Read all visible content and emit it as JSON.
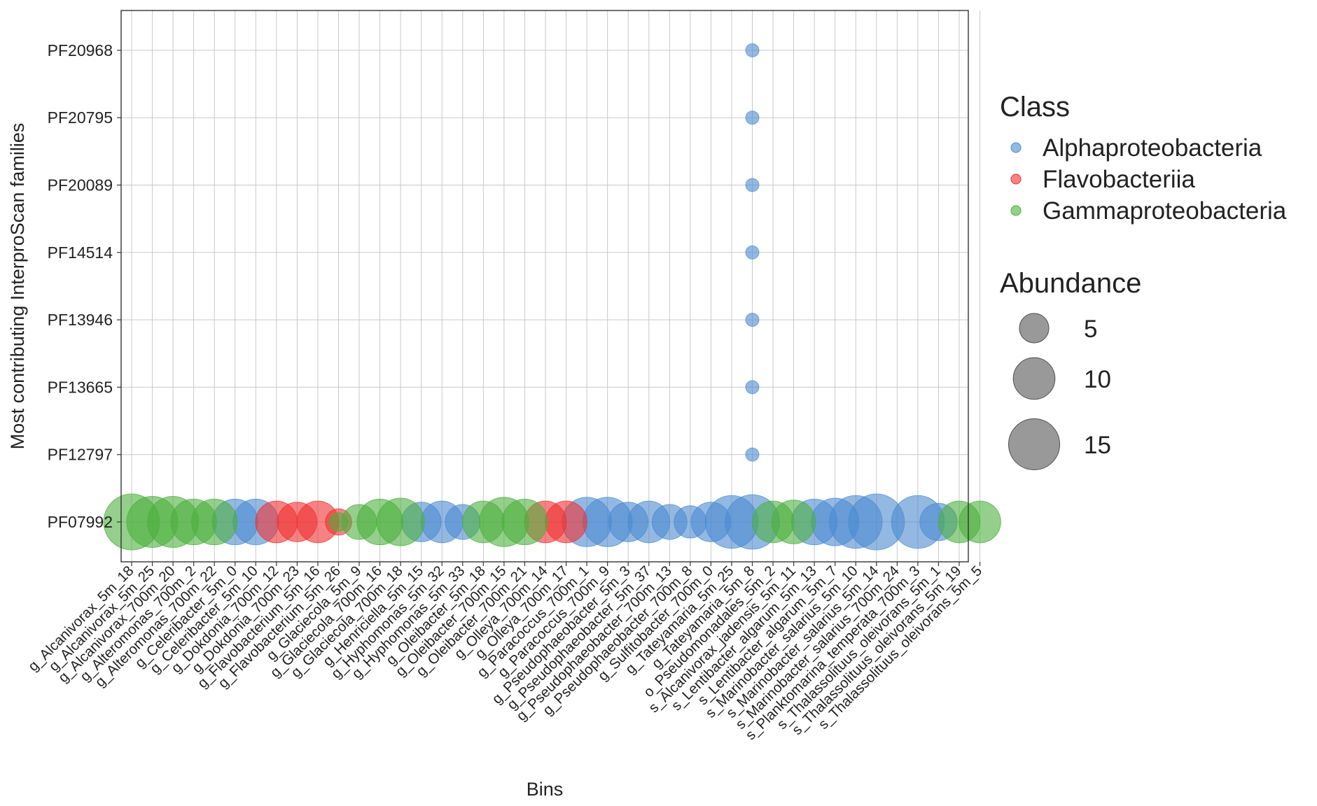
{
  "chart_data": {
    "type": "scatter",
    "subtype": "bubble",
    "title": "",
    "xlabel": "Bins",
    "ylabel": "Most contributing InterproScan families",
    "x_categories": [
      "g_Alcanivorax_5m_18",
      "g_Alcanivorax_5m_25",
      "g_Alcanivorax_700m_20",
      "g_Alteromonas_700m_2",
      "g_Alteromonas_700m_22",
      "g_Celeribacter_5m_0",
      "g_Celeribacter_5m_10",
      "g_Dokdonia_700m_12",
      "g_Dokdonia_700m_23",
      "g_Flavobacterium_5m_16",
      "g_Flavobacterium_5m_26",
      "g_Glaciecola_5m_9",
      "g_Glaciecola_700m_16",
      "g_Glaciecola_700m_18",
      "g_Henriciella_5m_15",
      "g_Hyphomonas_5m_32",
      "g_Hyphomonas_5m_33",
      "g_Oleibacter_5m_18",
      "g_Oleibacter_700m_15",
      "g_Oleibacter_700m_21",
      "g_Olleya_700m_14",
      "g_Olleya_700m_17",
      "g_Paracoccus_700m_1",
      "g_Paracoccus_700m_9",
      "g_Pseudophaeobacter_5m_3",
      "g_Pseudophaeobacter_5m_37",
      "g_Pseudophaeobacter_700m_13",
      "g_Pseudophaeobacter_700m_8",
      "g_Sulfitobacter_700m_0",
      "g_Tateyamaria_5m_25",
      "g_Tateyamaria_5m_8",
      "o_Pseudomonadales_5m_2",
      "s_Alcanivorax_jadensis_5m_11",
      "s_Lentibacter_algarum_5m_13",
      "s_Lentibacter_algarum_5m_7",
      "s_Marinobacter_salarius_5m_10",
      "s_Marinobacter_salarius_5m_14",
      "s_Marinobacter_salarius_700m_24",
      "s_Planktomarina_temperata_700m_3",
      "s_Thalassolituus_oleivorans_5m_1",
      "s_Thalassolituus_oleivorans_5m_19",
      "s_Thalassolituus_oleivorans_5m_5"
    ],
    "y_categories": [
      "PF07992",
      "PF12797",
      "PF13665",
      "PF13946",
      "PF14514",
      "PF20089",
      "PF20795",
      "PF20968"
    ],
    "series": [
      {
        "name": "Alphaproteobacteria",
        "color": "#4b8bd1",
        "points": [
          {
            "x": "g_Celeribacter_5m_0",
            "y": "PF07992",
            "abundance": 12
          },
          {
            "x": "g_Celeribacter_5m_10",
            "y": "PF07992",
            "abundance": 12
          },
          {
            "x": "g_Henriciella_5m_15",
            "y": "PF07992",
            "abundance": 9
          },
          {
            "x": "g_Hyphomonas_5m_32",
            "y": "PF07992",
            "abundance": 10
          },
          {
            "x": "g_Hyphomonas_5m_33",
            "y": "PF07992",
            "abundance": 7
          },
          {
            "x": "g_Paracoccus_700m_1",
            "y": "PF07992",
            "abundance": 14
          },
          {
            "x": "g_Paracoccus_700m_9",
            "y": "PF07992",
            "abundance": 14
          },
          {
            "x": "g_Pseudophaeobacter_5m_3",
            "y": "PF07992",
            "abundance": 9
          },
          {
            "x": "g_Pseudophaeobacter_5m_37",
            "y": "PF07992",
            "abundance": 10
          },
          {
            "x": "g_Pseudophaeobacter_700m_13",
            "y": "PF07992",
            "abundance": 7
          },
          {
            "x": "g_Pseudophaeobacter_700m_8",
            "y": "PF07992",
            "abundance": 6
          },
          {
            "x": "g_Sulfitobacter_700m_0",
            "y": "PF07992",
            "abundance": 9
          },
          {
            "x": "g_Tateyamaria_5m_25",
            "y": "PF07992",
            "abundance": 16
          },
          {
            "x": "g_Tateyamaria_5m_8",
            "y": "PF07992",
            "abundance": 17
          },
          {
            "x": "g_Tateyamaria_5m_8",
            "y": "PF12797",
            "abundance": 1
          },
          {
            "x": "g_Tateyamaria_5m_8",
            "y": "PF13665",
            "abundance": 1
          },
          {
            "x": "g_Tateyamaria_5m_8",
            "y": "PF13946",
            "abundance": 1
          },
          {
            "x": "g_Tateyamaria_5m_8",
            "y": "PF14514",
            "abundance": 1
          },
          {
            "x": "g_Tateyamaria_5m_8",
            "y": "PF20089",
            "abundance": 1
          },
          {
            "x": "g_Tateyamaria_5m_8",
            "y": "PF20795",
            "abundance": 1
          },
          {
            "x": "g_Tateyamaria_5m_8",
            "y": "PF20968",
            "abundance": 1
          },
          {
            "x": "s_Lentibacter_algarum_5m_13",
            "y": "PF07992",
            "abundance": 12
          },
          {
            "x": "s_Lentibacter_algarum_5m_7",
            "y": "PF07992",
            "abundance": 13
          },
          {
            "x": "s_Marinobacter_salarius_5m_10",
            "y": "PF07992",
            "abundance": 16
          },
          {
            "x": "s_Marinobacter_salarius_5m_14",
            "y": "PF07992",
            "abundance": 18
          },
          {
            "x": "s_Planktomarina_temperata_700m_3",
            "y": "PF07992",
            "abundance": 16
          },
          {
            "x": "s_Thalassolituus_oleivorans_5m_1",
            "y": "PF07992",
            "abundance": 8
          }
        ]
      },
      {
        "name": "Flavobacteriia",
        "color": "#f03030",
        "points": [
          {
            "x": "g_Dokdonia_700m_12",
            "y": "PF07992",
            "abundance": 10
          },
          {
            "x": "g_Dokdonia_700m_23",
            "y": "PF07992",
            "abundance": 9
          },
          {
            "x": "g_Flavobacterium_5m_16",
            "y": "PF07992",
            "abundance": 10
          },
          {
            "x": "g_Flavobacterium_5m_26",
            "y": "PF07992",
            "abundance": 4
          },
          {
            "x": "g_Olleya_700m_14",
            "y": "PF07992",
            "abundance": 10
          },
          {
            "x": "g_Olleya_700m_17",
            "y": "PF07992",
            "abundance": 10
          }
        ]
      },
      {
        "name": "Gammaproteobacteria",
        "color": "#4caf3e",
        "points": [
          {
            "x": "g_Alcanivorax_5m_18",
            "y": "PF07992",
            "abundance": 18
          },
          {
            "x": "g_Alcanivorax_5m_25",
            "y": "PF07992",
            "abundance": 15
          },
          {
            "x": "g_Alcanivorax_700m_20",
            "y": "PF07992",
            "abundance": 15
          },
          {
            "x": "g_Alteromonas_700m_2",
            "y": "PF07992",
            "abundance": 12
          },
          {
            "x": "g_Alteromonas_700m_22",
            "y": "PF07992",
            "abundance": 12
          },
          {
            "x": "g_Flavobacterium_5m_26",
            "y": "PF07992",
            "abundance": 2
          },
          {
            "x": "g_Glaciecola_5m_9",
            "y": "PF07992",
            "abundance": 7
          },
          {
            "x": "g_Glaciecola_700m_16",
            "y": "PF07992",
            "abundance": 12
          },
          {
            "x": "g_Glaciecola_700m_18",
            "y": "PF07992",
            "abundance": 13
          },
          {
            "x": "g_Oleibacter_5m_18",
            "y": "PF07992",
            "abundance": 10
          },
          {
            "x": "g_Oleibacter_700m_15",
            "y": "PF07992",
            "abundance": 14
          },
          {
            "x": "g_Oleibacter_700m_21",
            "y": "PF07992",
            "abundance": 12
          },
          {
            "x": "o_Pseudomonadales_5m_2",
            "y": "PF07992",
            "abundance": 10
          },
          {
            "x": "s_Alcanivorax_jadensis_5m_11",
            "y": "PF07992",
            "abundance": 11
          },
          {
            "x": "s_Thalassolituus_oleivorans_5m_19",
            "y": "PF07992",
            "abundance": 10
          },
          {
            "x": "s_Thalassolituus_oleivorans_5m_5",
            "y": "PF07992",
            "abundance": 10
          }
        ]
      }
    ],
    "legend": {
      "position": "right",
      "class_title": "Class",
      "class_entries": [
        "Alphaproteobacteria",
        "Flavobacteriia",
        "Gammaproteobacteria"
      ],
      "size_title": "Abundance",
      "size_entries": [
        5,
        10,
        15
      ]
    },
    "size_range": [
      1,
      18
    ],
    "point_opacity": 0.6,
    "grid": true,
    "panel_border": true
  }
}
